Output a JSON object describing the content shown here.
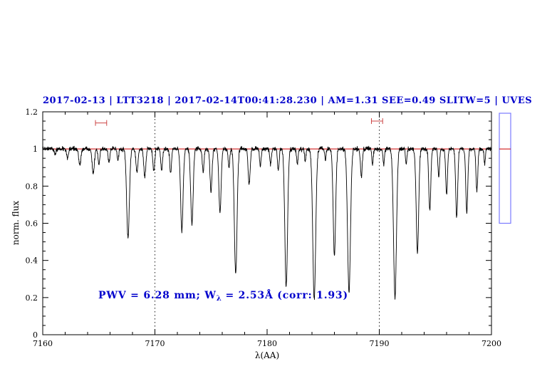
{
  "colors": {
    "background": "#ffffff",
    "title": "#0000cc",
    "annotation": "#0000cc",
    "spectrum": "#000000",
    "continuum": "#cc0000",
    "marker": "#cc4444",
    "guide": "#222222",
    "side_box_border": "#7a7aff",
    "axis": "#000000"
  },
  "annotation": {
    "prefix": "PWV = 6.28 mm; W",
    "sub": "λ",
    "suffix": " = 2.53Å (corr: 1.93)"
  },
  "chart_data": {
    "type": "line",
    "title": "2017-02-13 | LTT3218 | 2017-02-14T00:41:28.230 | AM=1.31 SEE=0.49 SLITW=5 | UVES",
    "xlabel": "λ(AA)",
    "ylabel": "norm. flux",
    "xlim": [
      7160,
      7200
    ],
    "ylim": [
      0,
      1.2
    ],
    "x_ticks": [
      7160,
      7170,
      7180,
      7190,
      7200
    ],
    "x_tick_labels": [
      "7160",
      "7170",
      "7180",
      "7190",
      "7200"
    ],
    "x_minor_step": 2,
    "y_ticks": [
      0,
      0.2,
      0.4,
      0.6,
      0.8,
      1,
      1.2
    ],
    "y_tick_labels": [
      "0",
      "0.2",
      "0.4",
      "0.6",
      "0.8",
      "1",
      "1.2"
    ],
    "y_minor_step": 0.05,
    "grid": false,
    "dotted_guides_x": [
      7170,
      7190
    ],
    "continuum_level": 1.0,
    "noise_rms": 0.006,
    "sample_step": 0.02,
    "absorption_lines_format": [
      "center_AA",
      "depth",
      "sigma_AA"
    ],
    "absorption_lines": [
      [
        7161.1,
        0.03,
        0.07
      ],
      [
        7162.2,
        0.05,
        0.08
      ],
      [
        7163.3,
        0.09,
        0.09
      ],
      [
        7164.5,
        0.13,
        0.1
      ],
      [
        7165.0,
        0.08,
        0.08
      ],
      [
        7165.9,
        0.07,
        0.08
      ],
      [
        7166.7,
        0.06,
        0.07
      ],
      [
        7167.6,
        0.48,
        0.12
      ],
      [
        7168.4,
        0.12,
        0.09
      ],
      [
        7169.1,
        0.15,
        0.09
      ],
      [
        7169.9,
        0.12,
        0.08
      ],
      [
        7170.6,
        0.11,
        0.08
      ],
      [
        7171.4,
        0.13,
        0.08
      ],
      [
        7172.4,
        0.44,
        0.11
      ],
      [
        7173.3,
        0.4,
        0.11
      ],
      [
        7174.3,
        0.12,
        0.08
      ],
      [
        7175.0,
        0.23,
        0.09
      ],
      [
        7175.8,
        0.34,
        0.1
      ],
      [
        7176.6,
        0.1,
        0.07
      ],
      [
        7177.2,
        0.67,
        0.12
      ],
      [
        7178.4,
        0.19,
        0.09
      ],
      [
        7179.4,
        0.09,
        0.07
      ],
      [
        7180.3,
        0.08,
        0.07
      ],
      [
        7181.0,
        0.12,
        0.07
      ],
      [
        7181.7,
        0.74,
        0.12
      ],
      [
        7182.7,
        0.08,
        0.07
      ],
      [
        7183.4,
        0.07,
        0.06
      ],
      [
        7184.2,
        0.81,
        0.13
      ],
      [
        7185.2,
        0.06,
        0.06
      ],
      [
        7186.0,
        0.58,
        0.11
      ],
      [
        7187.3,
        0.77,
        0.13
      ],
      [
        7188.4,
        0.15,
        0.08
      ],
      [
        7189.4,
        0.08,
        0.06
      ],
      [
        7190.4,
        0.09,
        0.06
      ],
      [
        7191.4,
        0.8,
        0.13
      ],
      [
        7192.4,
        0.08,
        0.06
      ],
      [
        7193.4,
        0.56,
        0.11
      ],
      [
        7194.5,
        0.33,
        0.09
      ],
      [
        7195.3,
        0.15,
        0.07
      ],
      [
        7196.0,
        0.24,
        0.08
      ],
      [
        7196.9,
        0.37,
        0.09
      ],
      [
        7197.8,
        0.34,
        0.09
      ],
      [
        7198.7,
        0.23,
        0.08
      ],
      [
        7199.4,
        0.08,
        0.06
      ]
    ],
    "range_markers": [
      {
        "x1": 7164.7,
        "x2": 7165.7,
        "y": 1.14
      },
      {
        "x1": 7189.3,
        "x2": 7190.3,
        "y": 1.15
      }
    ],
    "side_box": {
      "y_top": 1.2,
      "y_bottom": 0.6,
      "line_y": 1.0
    }
  }
}
